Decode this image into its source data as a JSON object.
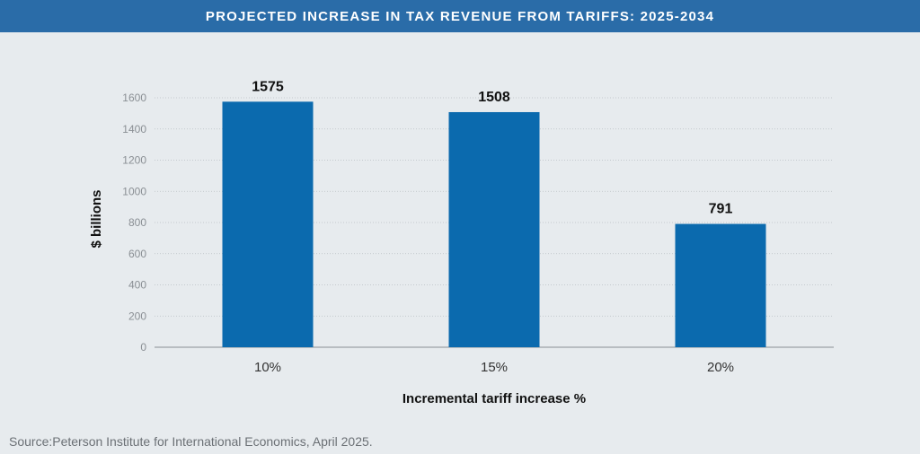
{
  "title": "PROJECTED INCREASE IN TAX REVENUE FROM TARIFFS: 2025-2034",
  "source": "Source:Peterson Institute for International Economics, April 2025.",
  "colors": {
    "title_bar": "#2a6ca8",
    "bar": "#0b6aae",
    "background": "#e7ebee"
  },
  "chart_data": {
    "type": "bar",
    "title": "PROJECTED INCREASE IN TAX REVENUE FROM TARIFFS: 2025-2034",
    "categories": [
      "10%",
      "15%",
      "20%"
    ],
    "values": [
      1575,
      1508,
      791
    ],
    "data_labels": [
      "1575",
      "1508",
      "791"
    ],
    "xlabel": "Incremental tariff increase %",
    "ylabel": "$ billions",
    "ylim": [
      0,
      1600
    ],
    "yticks": [
      0,
      200,
      400,
      600,
      800,
      1000,
      1200,
      1400,
      1600
    ],
    "ytick_labels": [
      "0",
      "200",
      "400",
      "600",
      "800",
      "1000",
      "1200",
      "1400",
      "1600"
    ],
    "grid": true,
    "legend": "none"
  }
}
